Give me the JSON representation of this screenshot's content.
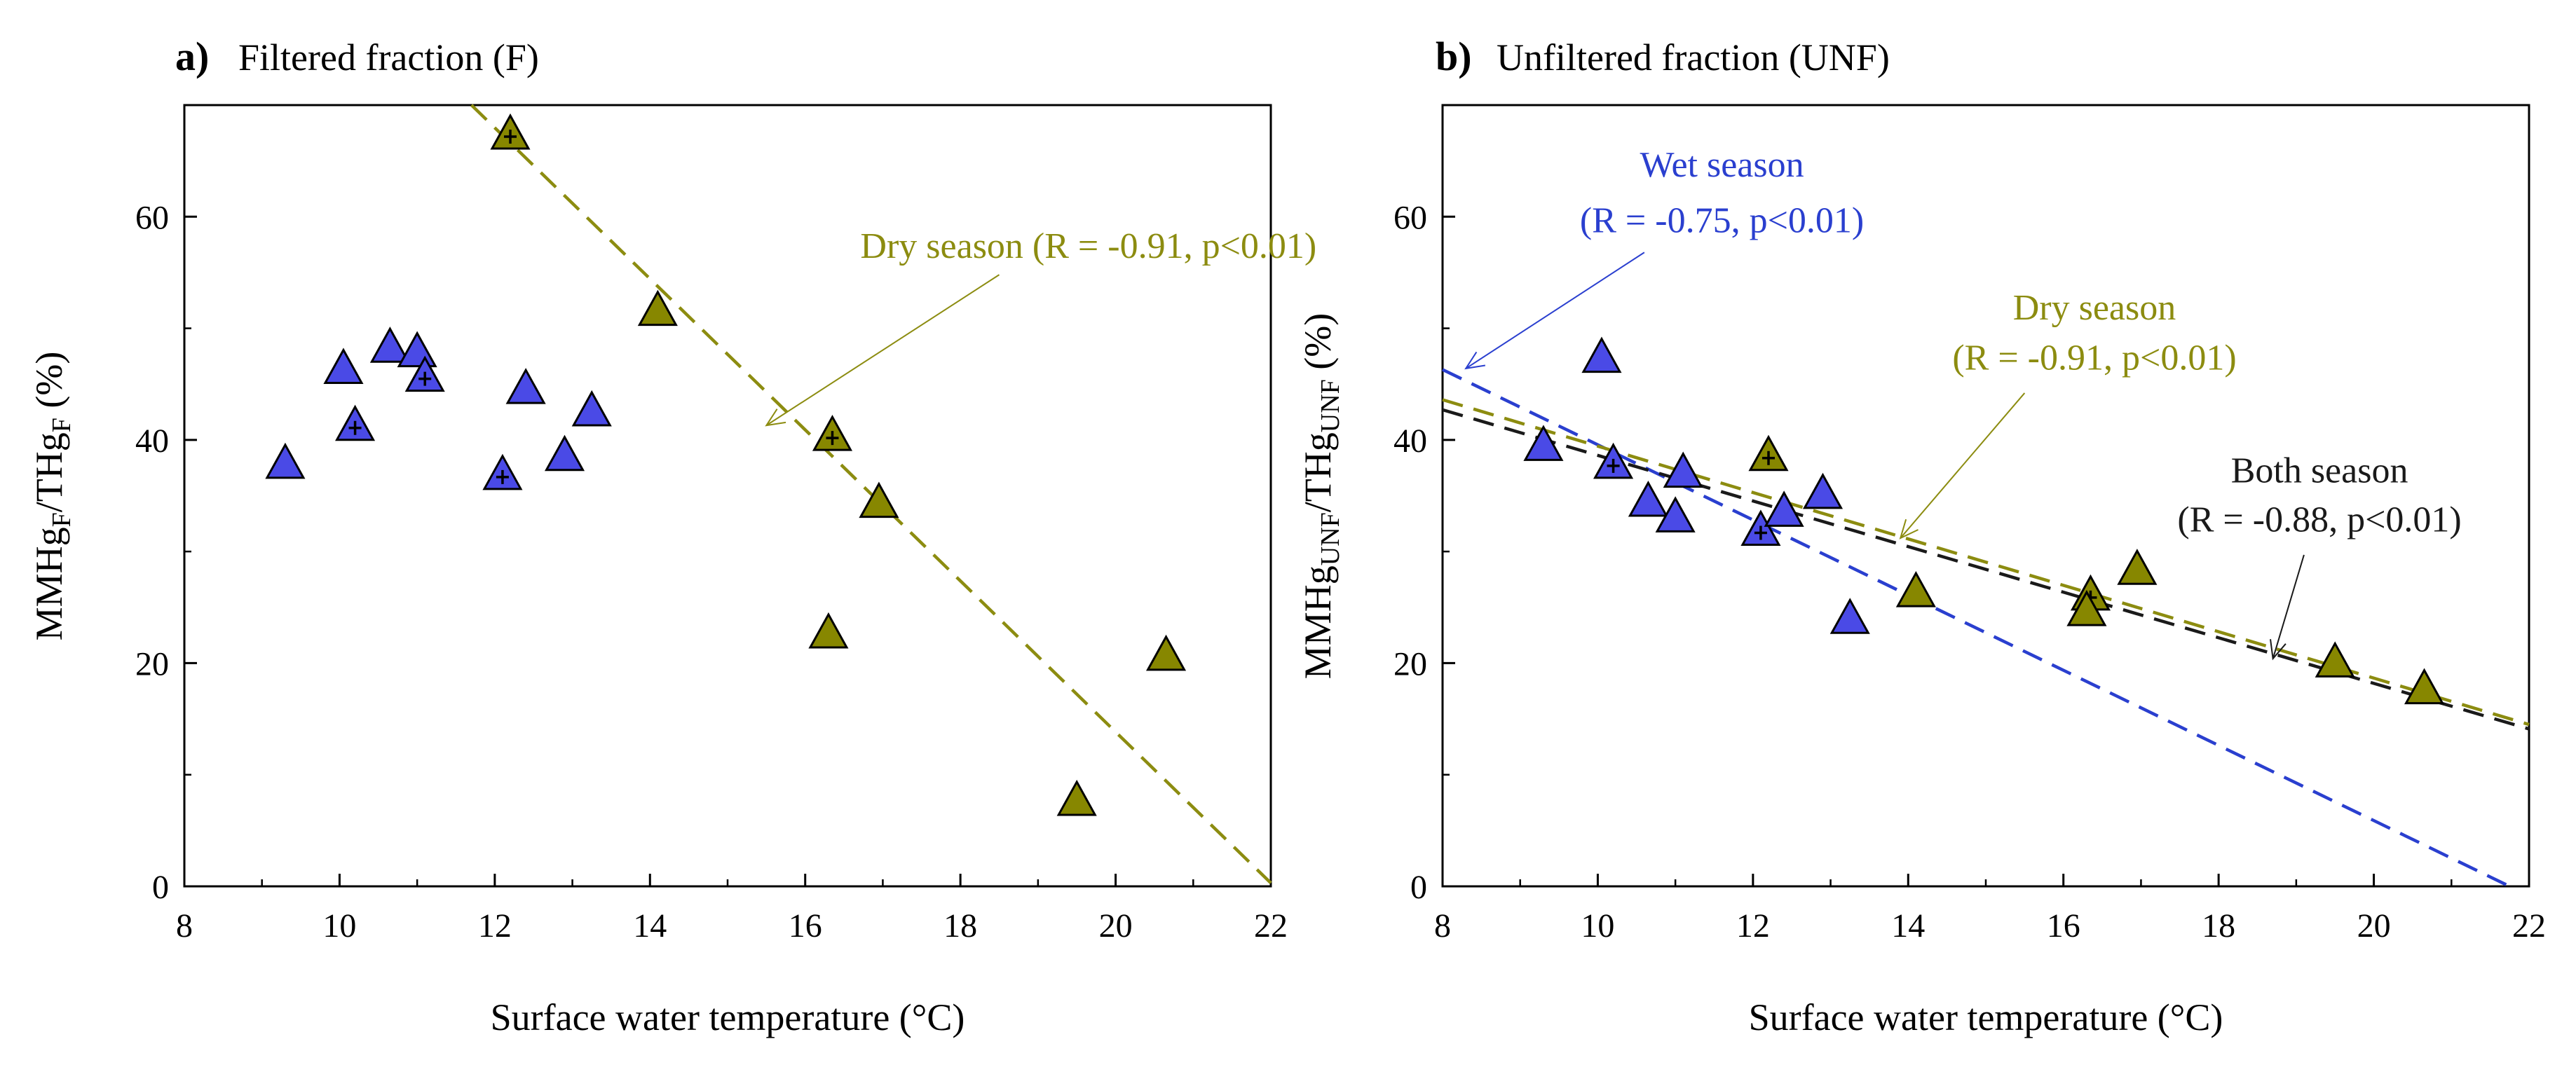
{
  "colors": {
    "wet": "#4a4ae6",
    "dry": "#878700",
    "both": "#1a1a1a",
    "wet_line": "#2a3fcf",
    "dry_line": "#8c8c10",
    "both_line": "#1a1a1a"
  },
  "chart_data": [
    {
      "type": "scatter",
      "panel": "a)",
      "title": "Filtered fraction (F)",
      "xlabel": "Surface water temperature (°C)",
      "ylabel": "MMHgF/THgF (%)",
      "ylabel_parts": {
        "main1": "MMHg",
        "sub1": "F",
        "main2": "/THg",
        "sub2": "F",
        "end": " (%)"
      },
      "xlim": [
        8,
        22
      ],
      "ylim": [
        0,
        70
      ],
      "xticks": [
        "8",
        "10",
        "12",
        "14",
        "16",
        "18",
        "20",
        "22"
      ],
      "yticks": [
        "0",
        "20",
        "40",
        "60"
      ],
      "series": [
        {
          "name": "Wet season",
          "color_key": "wet",
          "points": [
            [
              9.3,
              37.8
            ],
            [
              10.05,
              46.3
            ],
            [
              10.2,
              41.2
            ],
            [
              10.65,
              48.2
            ],
            [
              11.0,
              47.8
            ],
            [
              11.1,
              45.6
            ],
            [
              12.1,
              36.8
            ],
            [
              12.4,
              44.5
            ],
            [
              12.9,
              38.5
            ],
            [
              13.25,
              42.5
            ]
          ]
        },
        {
          "name": "Dry season",
          "color_key": "dry",
          "points": [
            [
              12.2,
              67.3
            ],
            [
              14.1,
              51.5
            ],
            [
              16.35,
              40.3
            ],
            [
              16.95,
              34.3
            ],
            [
              16.3,
              22.6
            ],
            [
              19.5,
              7.6
            ],
            [
              20.65,
              20.6
            ]
          ]
        }
      ],
      "cross_marked": [
        [
          12.2,
          67.3
        ],
        [
          16.35,
          40.3
        ],
        [
          10.2,
          41.2
        ],
        [
          11.1,
          45.6
        ],
        [
          12.1,
          36.8
        ]
      ],
      "fits": [
        {
          "name": "Dry season",
          "color_key": "dry_line",
          "x": [
            11.7,
            22.0
          ],
          "y": [
            70.0,
            0.3
          ]
        }
      ],
      "annotations": [
        {
          "text": "Dry season (R = -0.91, p<0.01)",
          "color_key": "dry_line",
          "at": [
            19.65,
            56.3
          ],
          "anchor": "middle",
          "arrow_from": [
            18.5,
            54.8
          ],
          "arrow_to": [
            15.5,
            41.3
          ]
        }
      ]
    },
    {
      "type": "scatter",
      "panel": "b)",
      "title": "Unfiltered fraction (UNF)",
      "xlabel": "Surface water temperature (°C)",
      "ylabel": "MMHgUNF/THgUNF (%)",
      "ylabel_parts": {
        "main1": "MMHg",
        "sub1": "UNF",
        "main2": "/THg",
        "sub2": "UNF",
        "end": " (%)"
      },
      "xlim": [
        8,
        22
      ],
      "ylim": [
        0,
        70
      ],
      "xticks": [
        "8",
        "10",
        "12",
        "14",
        "16",
        "18",
        "20",
        "22"
      ],
      "yticks": [
        "0",
        "20",
        "40",
        "60"
      ],
      "series": [
        {
          "name": "Wet season",
          "color_key": "wet",
          "points": [
            [
              9.3,
              39.4
            ],
            [
              10.05,
              47.3
            ],
            [
              10.2,
              37.8
            ],
            [
              10.65,
              34.4
            ],
            [
              11.0,
              33.0
            ],
            [
              11.1,
              37.0
            ],
            [
              12.1,
              31.8
            ],
            [
              12.4,
              33.5
            ],
            [
              12.9,
              35.1
            ],
            [
              13.25,
              23.9
            ]
          ]
        },
        {
          "name": "Dry season",
          "color_key": "dry",
          "points": [
            [
              12.2,
              38.5
            ],
            [
              14.1,
              26.3
            ],
            [
              16.35,
              26.0
            ],
            [
              16.3,
              24.6
            ],
            [
              16.95,
              28.3
            ],
            [
              19.5,
              20.0
            ],
            [
              20.65,
              17.6
            ]
          ]
        }
      ],
      "cross_marked": [
        [
          12.2,
          38.5
        ],
        [
          10.2,
          37.8
        ],
        [
          12.1,
          31.8
        ],
        [
          16.35,
          26.0
        ]
      ],
      "fits": [
        {
          "name": "Wet season",
          "color_key": "wet_line",
          "x": [
            8.0,
            21.75
          ],
          "y": [
            46.3,
            0.0
          ]
        },
        {
          "name": "Dry season",
          "color_key": "dry_line",
          "x": [
            8.0,
            22.0
          ],
          "y": [
            43.6,
            14.5
          ]
        },
        {
          "name": "Both season",
          "color_key": "both_line",
          "x": [
            8.0,
            22.0
          ],
          "y": [
            42.7,
            14.1
          ]
        }
      ],
      "annotations": [
        {
          "text": "Wet season",
          "color_key": "wet_line",
          "at": [
            11.6,
            63.6
          ],
          "anchor": "middle"
        },
        {
          "text": "(R = -0.75, p<0.01)",
          "color_key": "wet_line",
          "at": [
            11.6,
            58.6
          ],
          "anchor": "middle",
          "arrow_from": [
            10.6,
            56.8
          ],
          "arrow_to": [
            8.3,
            46.4
          ]
        },
        {
          "text": "Dry season",
          "color_key": "dry_line",
          "at": [
            16.4,
            50.8
          ],
          "anchor": "middle"
        },
        {
          "text": "(R = -0.91, p<0.01)",
          "color_key": "dry_line",
          "at": [
            16.4,
            46.3
          ],
          "anchor": "middle",
          "arrow_from": [
            15.5,
            44.2
          ],
          "arrow_to": [
            13.9,
            31.2
          ]
        },
        {
          "text": "Both season",
          "color_key": "both_line",
          "at": [
            19.3,
            36.2
          ],
          "anchor": "middle"
        },
        {
          "text": "(R = -0.88, p<0.01)",
          "color_key": "both_line",
          "at": [
            19.3,
            31.8
          ],
          "anchor": "middle",
          "arrow_from": [
            19.1,
            29.7
          ],
          "arrow_to": [
            18.7,
            20.4
          ]
        }
      ]
    }
  ]
}
